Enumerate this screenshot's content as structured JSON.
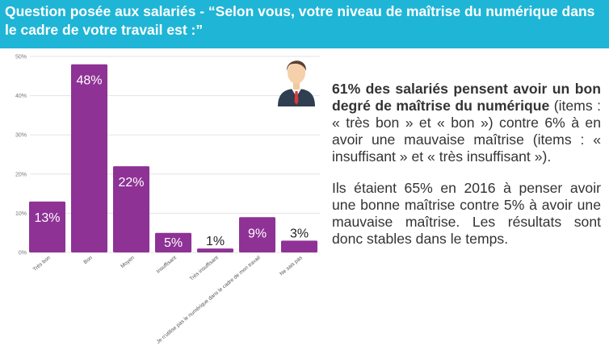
{
  "header": {
    "title": "Question posée aux salariés - “Selon vous, votre niveau de maîtrise du numérique dans le cadre de votre travail est :”"
  },
  "summary": {
    "p1_bold": "61% des salariés pensent avoir un bon degré de maîtrise du numérique",
    "p1_rest": " (items : « très bon » et « bon ») contre 6% à en avoir une mauvaise maîtrise (items : « insuffisant » et « très insuffisant »).",
    "p2": "Ils étaient 65% en 2016 à penser avoir une bonne maîtrise contre 5% à avoir une mauvaise maîtrise. Les résultats sont donc stables dans le temps."
  },
  "icons": {
    "avatar": "businessman-icon"
  },
  "colors": {
    "header": "#1fb5d6",
    "bar": "#8e3295",
    "grid": "#e3e3e3"
  },
  "chart_data": {
    "type": "bar",
    "categories": [
      "Très bon",
      "Bon",
      "Moyen",
      "Insuffisant",
      "Très insuffisant",
      "Je n'utilise pas le numérique dans le cadre de mon travail",
      "Ne sais pas"
    ],
    "values": [
      13,
      48,
      22,
      5,
      1,
      9,
      3
    ],
    "value_labels": [
      "13%",
      "48%",
      "22%",
      "5%",
      "1%",
      "9%",
      "3%"
    ],
    "yticks": [
      "0%",
      "10%",
      "20%",
      "30%",
      "40%",
      "50%"
    ],
    "ylim": [
      0,
      50
    ],
    "grid": true
  }
}
